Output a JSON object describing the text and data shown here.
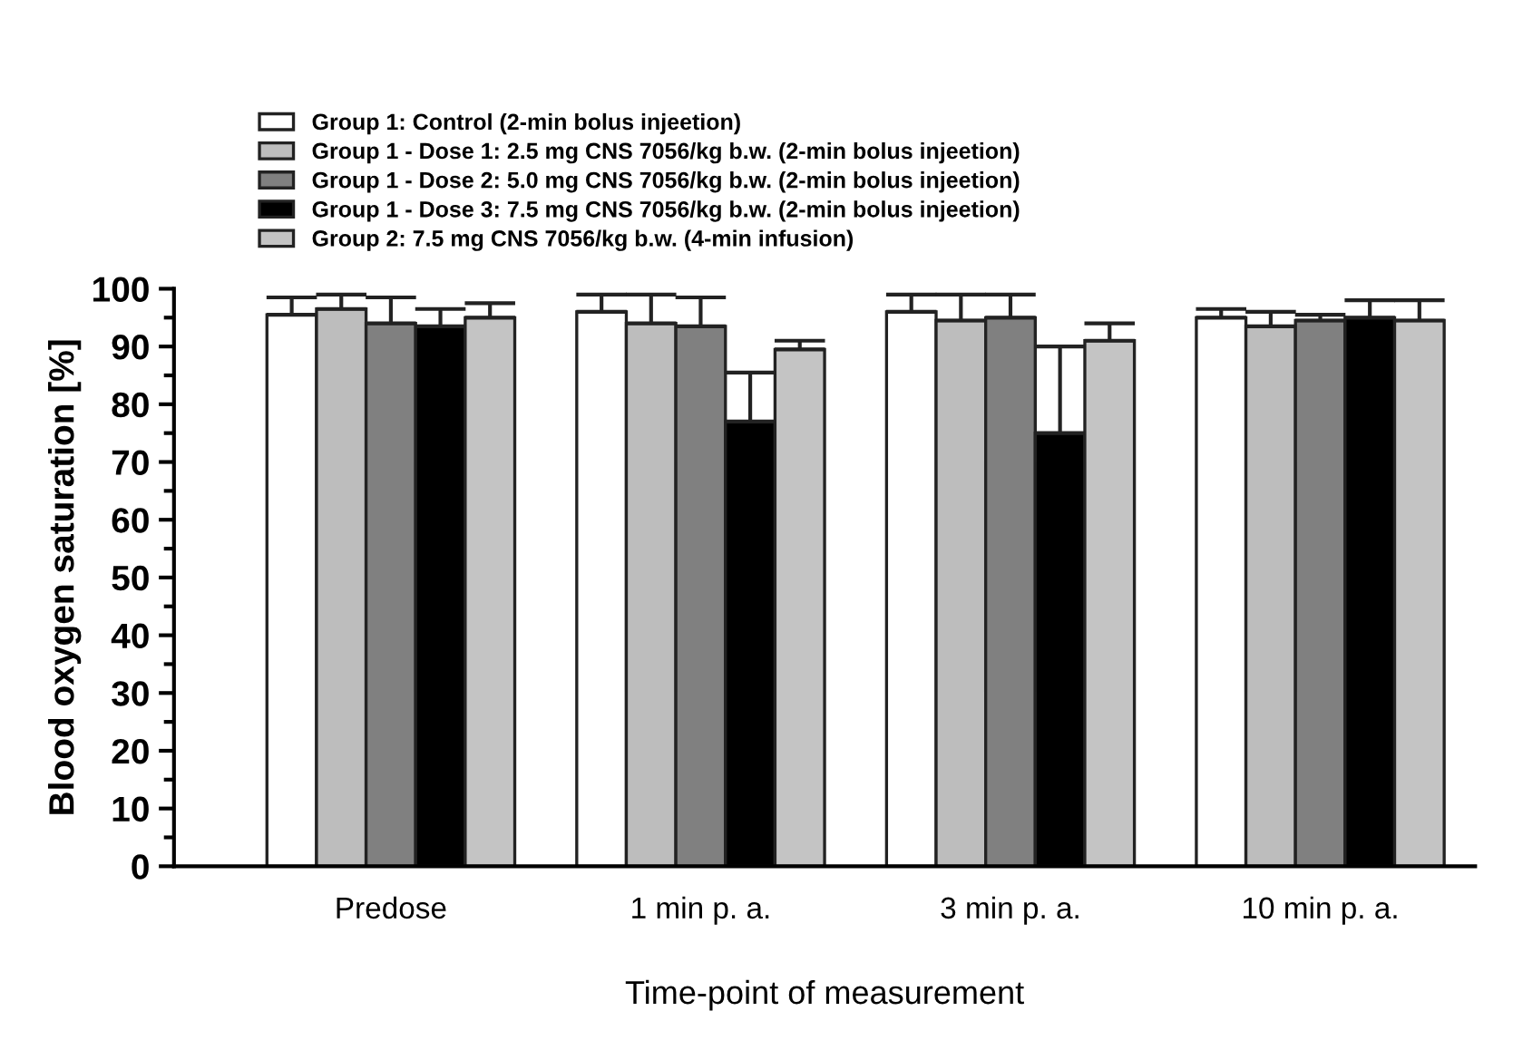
{
  "chart_data": {
    "type": "bar",
    "xlabel": "Time-point of measurement",
    "ylabel": "Blood oxygen saturation [%]",
    "categories": [
      "Predose",
      "1 min p. a.",
      "3 min p. a.",
      "10 min p. a."
    ],
    "series": [
      {
        "name": "Group 1: Control (2-min bolus injeetion)",
        "color": "#ffffff",
        "values": [
          95.5,
          96,
          96,
          95
        ],
        "errors": [
          [
            95.5,
            98.5
          ],
          [
            96,
            99
          ],
          [
            96,
            99
          ],
          [
            95,
            96.5
          ]
        ]
      },
      {
        "name": "Group 1 - Dose 1: 2.5 mg CNS 7056/kg b.w. (2-min bolus injeetion)",
        "color": "#bdbdbd",
        "values": [
          96.5,
          94,
          94.5,
          93.5
        ],
        "errors": [
          [
            96.5,
            99
          ],
          [
            94,
            99
          ],
          [
            94.5,
            99
          ],
          [
            93.5,
            96
          ]
        ]
      },
      {
        "name": "Group 1 - Dose 2: 5.0 mg CNS 7056/kg b.w. (2-min bolus injeetion)",
        "color": "#808080",
        "values": [
          94,
          93.5,
          95,
          94.5
        ],
        "errors": [
          [
            94,
            98.5
          ],
          [
            93.5,
            98.5
          ],
          [
            95,
            99
          ],
          [
            94.5,
            95.5
          ]
        ]
      },
      {
        "name": "Group 1 - Dose 3: 7.5 mg CNS 7056/kg b.w. (2-min bolus injeetion)",
        "color": "#000000",
        "values": [
          93.5,
          77,
          75,
          95
        ],
        "errors": [
          [
            93.5,
            96.5
          ],
          [
            77,
            85.5
          ],
          [
            75,
            90
          ],
          [
            95,
            98
          ]
        ]
      },
      {
        "name": "Group 2: 7.5 mg CNS 7056/kg b.w. (4-min infusion)",
        "color": "#c4c4c4",
        "values": [
          95,
          89.5,
          91,
          94.5
        ],
        "errors": [
          [
            95,
            97.5
          ],
          [
            89.5,
            91
          ],
          [
            91,
            94
          ],
          [
            94.5,
            98
          ]
        ]
      }
    ],
    "ylim": [
      0,
      100
    ],
    "yticks": [
      0,
      10,
      20,
      30,
      40,
      50,
      60,
      70,
      80,
      90,
      100
    ],
    "grid": false,
    "legend": "top left"
  }
}
